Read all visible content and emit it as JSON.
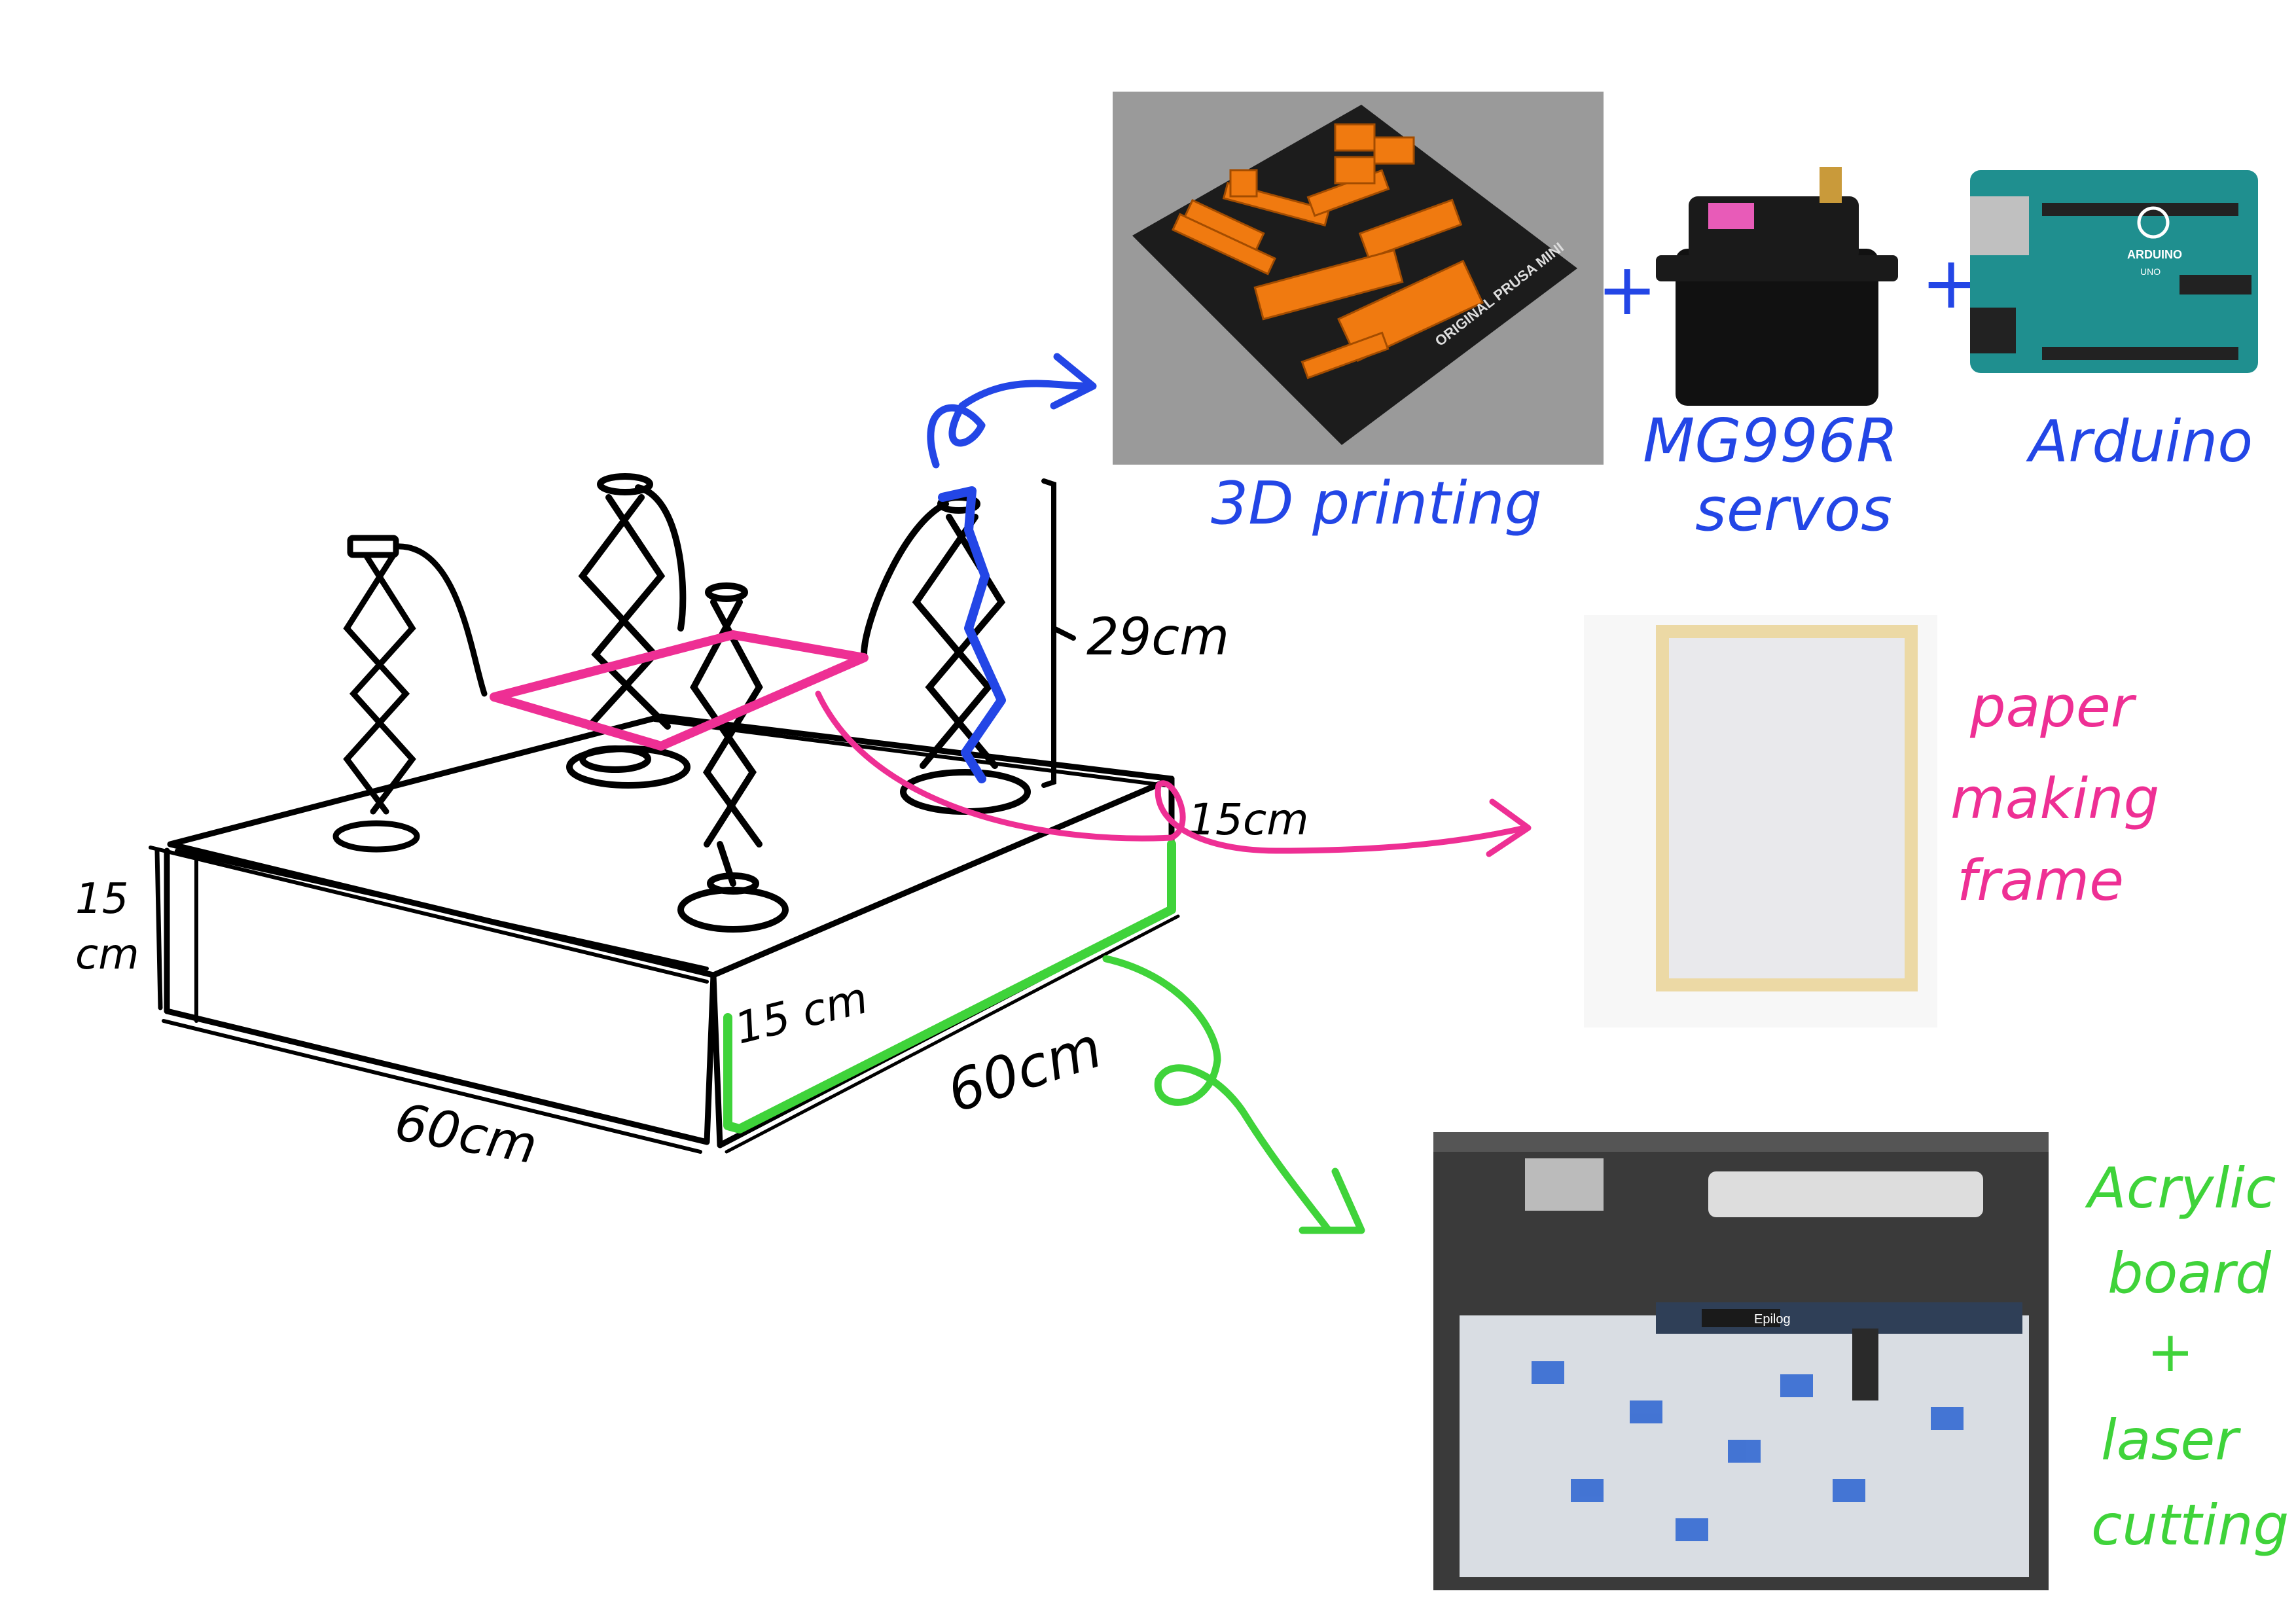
{
  "colors": {
    "ink": "#000000",
    "blue": "#2346e6",
    "pink": "#ee2f94",
    "green": "#3fd33a",
    "printer_bed_bg": "#9a9a9a",
    "printer_bed_plate": "#1c1c1c",
    "printed_parts": "#f07a10",
    "arduino_board": "#1f8f8f",
    "frame_wood": "#ecd9a5",
    "laser_bg": "#3a3a3a"
  },
  "sketch": {
    "height_label": "29cm",
    "depth_label_right": "15cm",
    "height_label_left_line1": "15",
    "height_label_left_line2": "cm",
    "front_height_label": "15 cm",
    "width_label_front": "60cm",
    "width_label_side": "60cm"
  },
  "components": {
    "printing": {
      "bed_text": "ORIGINAL PRUSA MINI",
      "label": "3D printing",
      "icon": "printer-bed-icon"
    },
    "servo": {
      "label_line1": "MG996R",
      "label_line2": "servos",
      "icon": "servo-icon"
    },
    "arduino": {
      "label": "Arduino",
      "board_text": "ARDUINO",
      "board_sub": "UNO",
      "icon": "arduino-board-icon"
    },
    "plus_1": "+",
    "plus_2": "+",
    "paper_frame": {
      "label_line1": "paper",
      "label_line2": "making",
      "label_line3": "frame",
      "icon": "wooden-frame-icon"
    },
    "laser": {
      "label_line1": "Acrylic",
      "label_line2": "board",
      "label_line3": "+",
      "label_line4": "laser",
      "label_line5": "cutting",
      "icon": "laser-cutter-icon",
      "machine_brand": "Epilog"
    }
  }
}
